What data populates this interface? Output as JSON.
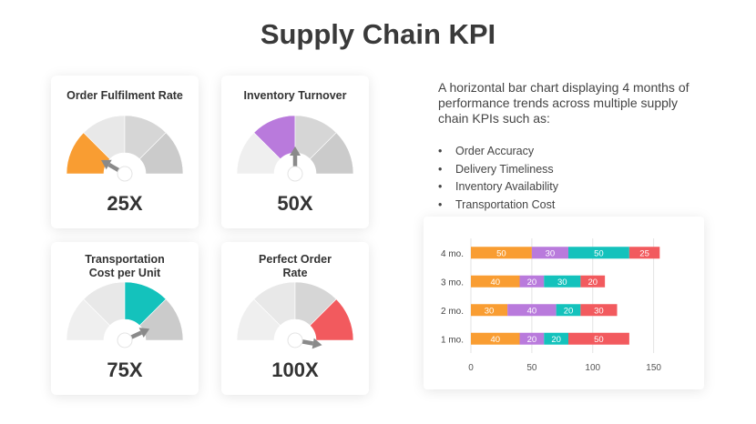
{
  "title": "Supply Chain KPI",
  "gauges": [
    {
      "label": "Order Fulfilment Rate",
      "value": "25X",
      "color": "#F99D32",
      "level": 25
    },
    {
      "label": "Inventory Turnover",
      "value": "50X",
      "color": "#B97ADC",
      "level": 50
    },
    {
      "label": "Transportation Cost per Unit",
      "value": "75X",
      "color": "#14C2BC",
      "level": 75
    },
    {
      "label": "Perfect Order Rate",
      "value": "100X",
      "color": "#F25A5E",
      "level": 100
    }
  ],
  "description": "A horizontal bar chart displaying 4 months of performance trends across multiple supply chain KPIs such as:",
  "bullets": [
    "Order Accuracy",
    "Delivery Timeliness",
    "Inventory Availability",
    "Transportation Cost"
  ],
  "chart_data": {
    "type": "bar",
    "orientation": "horizontal",
    "stacked": true,
    "categories": [
      "4 mo.",
      "3 mo.",
      "2 mo.",
      "1 mo."
    ],
    "series": [
      {
        "color": "#F99D32",
        "values": [
          50,
          40,
          30,
          40
        ]
      },
      {
        "color": "#B97ADC",
        "values": [
          30,
          20,
          40,
          20
        ]
      },
      {
        "color": "#14C2BC",
        "values": [
          50,
          30,
          20,
          20
        ]
      },
      {
        "color": "#F25A5E",
        "values": [
          25,
          20,
          30,
          50
        ]
      }
    ],
    "x_ticks": [
      0,
      50,
      100,
      150
    ],
    "xlim": [
      0,
      160
    ],
    "grid": true,
    "legend": "none"
  }
}
